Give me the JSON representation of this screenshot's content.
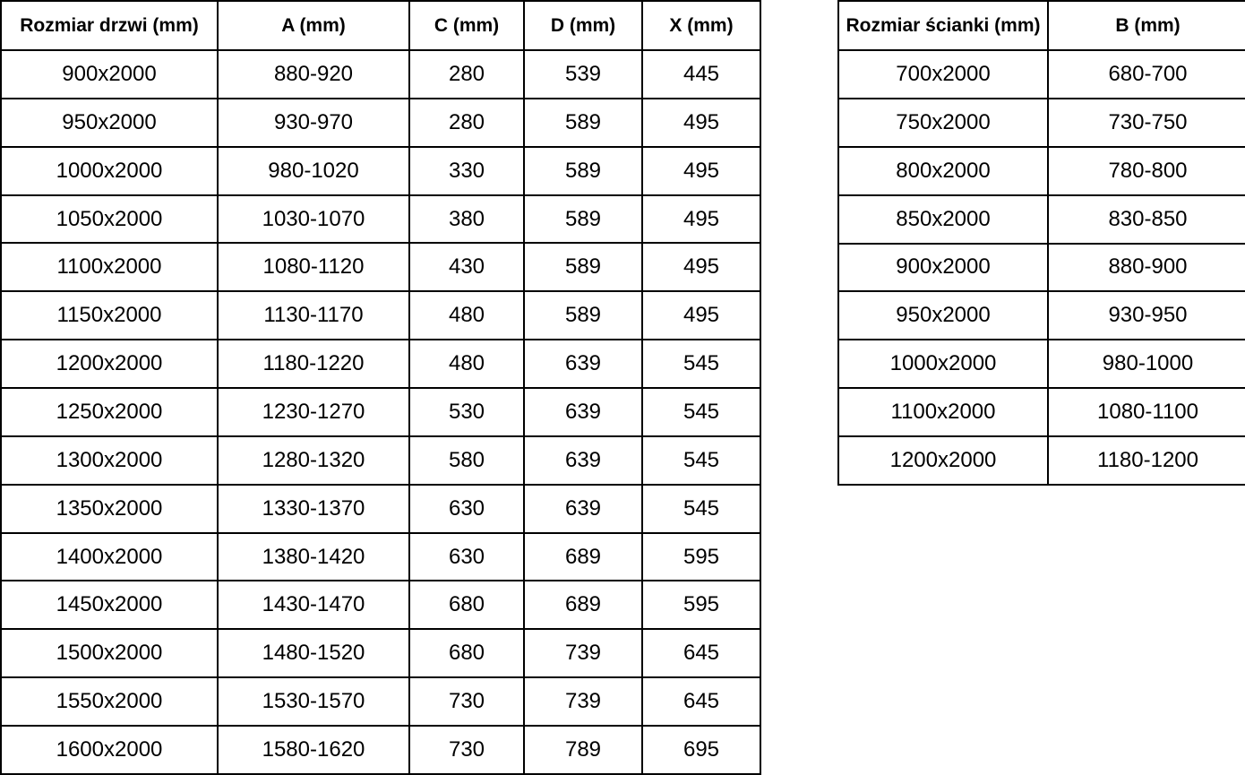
{
  "colors": {
    "border": "#000000",
    "text": "#000000",
    "background": "#ffffff"
  },
  "tables": [
    {
      "id": "door-size-table",
      "headers": [
        "Rozmiar drzwi (mm)",
        "A (mm)",
        "C (mm)",
        "D (mm)",
        "X (mm)"
      ],
      "rows": [
        [
          "900x2000",
          "880-920",
          "280",
          "539",
          "445"
        ],
        [
          "950x2000",
          "930-970",
          "280",
          "589",
          "495"
        ],
        [
          "1000x2000",
          "980-1020",
          "330",
          "589",
          "495"
        ],
        [
          "1050x2000",
          "1030-1070",
          "380",
          "589",
          "495"
        ],
        [
          "1100x2000",
          "1080-1120",
          "430",
          "589",
          "495"
        ],
        [
          "1150x2000",
          "1130-1170",
          "480",
          "589",
          "495"
        ],
        [
          "1200x2000",
          "1180-1220",
          "480",
          "639",
          "545"
        ],
        [
          "1250x2000",
          "1230-1270",
          "530",
          "639",
          "545"
        ],
        [
          "1300x2000",
          "1280-1320",
          "580",
          "639",
          "545"
        ],
        [
          "1350x2000",
          "1330-1370",
          "630",
          "639",
          "545"
        ],
        [
          "1400x2000",
          "1380-1420",
          "630",
          "689",
          "595"
        ],
        [
          "1450x2000",
          "1430-1470",
          "680",
          "689",
          "595"
        ],
        [
          "1500x2000",
          "1480-1520",
          "680",
          "739",
          "645"
        ],
        [
          "1550x2000",
          "1530-1570",
          "730",
          "739",
          "645"
        ],
        [
          "1600x2000",
          "1580-1620",
          "730",
          "789",
          "695"
        ]
      ]
    },
    {
      "id": "wall-size-table",
      "headers": [
        "Rozmiar ścianki (mm)",
        "B (mm)"
      ],
      "rows": [
        [
          "700x2000",
          "680-700"
        ],
        [
          "750x2000",
          "730-750"
        ],
        [
          "800x2000",
          "780-800"
        ],
        [
          "850x2000",
          "830-850"
        ],
        [
          "900x2000",
          "880-900"
        ],
        [
          "950x2000",
          "930-950"
        ],
        [
          "1000x2000",
          "980-1000"
        ],
        [
          "1100x2000",
          "1080-1100"
        ],
        [
          "1200x2000",
          "1180-1200"
        ]
      ]
    }
  ]
}
